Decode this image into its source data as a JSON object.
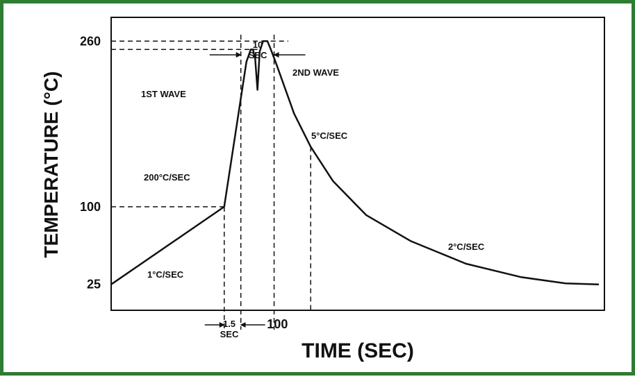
{
  "chart_data": {
    "type": "line",
    "xlabel": "TIME (SEC)",
    "ylabel": "TEMPERATURE (°C)",
    "xticks": [
      {
        "value": 100,
        "label": "100"
      }
    ],
    "yticks": [
      {
        "value": 25,
        "label": "25"
      },
      {
        "value": 100,
        "label": "100"
      },
      {
        "value": 260,
        "label": "260"
      }
    ],
    "xlim": [
      -50,
      395
    ],
    "ylim": [
      0,
      283
    ],
    "grid": false,
    "series": [
      {
        "x": [
          -50,
          52,
          72,
          76,
          78,
          80,
          82,
          84,
          87,
          91,
          94,
          99,
          105,
          115,
          130,
          150,
          180,
          220,
          270,
          320,
          360,
          390
        ],
        "y": [
          25,
          100,
          240,
          252,
          252,
          242,
          213,
          250,
          260,
          260,
          252,
          238,
          220,
          190,
          158,
          125,
          92,
          67,
          45,
          32,
          26,
          25
        ]
      }
    ],
    "annotations": {
      "rate_1": "1°C/SEC",
      "rate_200": "200°C/SEC",
      "rate_5": "5°C/SEC",
      "rate_2": "2°C/SEC",
      "first_wave": "1ST WAVE",
      "second_wave": "2ND WAVE",
      "ten_sec_top": "10",
      "ten_sec_bottom": "SEC",
      "one_five_top": "1.5",
      "one_five_bottom": "SEC"
    }
  }
}
